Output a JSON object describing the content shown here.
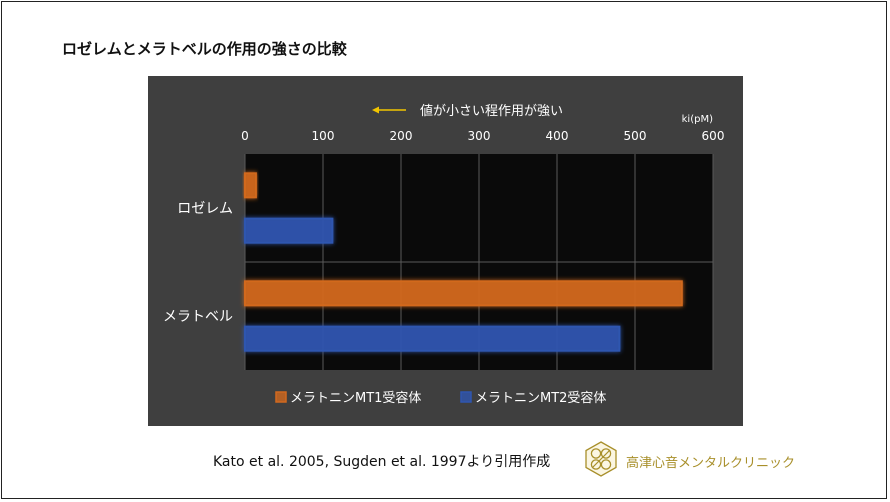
{
  "page": {
    "title": "ロゼレムとメラトベルの作用の強さの比較",
    "citation": "Kato et al. 2005, Sugden et al. 1997より引用作成",
    "clinic_name": "高津心音メンタルクリニック",
    "logo_icon": "clover-logo-icon"
  },
  "chart_data": {
    "type": "bar",
    "orientation": "horizontal",
    "categories": [
      "ロゼレム",
      "メラトベル"
    ],
    "series": [
      {
        "name": "メラトニンMT1受容体",
        "color": "#d2691e",
        "values": [
          14,
          560
        ]
      },
      {
        "name": "メラトニンMT2受容体",
        "color": "#2f56b0",
        "values": [
          112,
          480
        ]
      }
    ],
    "xlim": [
      0,
      600
    ],
    "xticks": [
      0,
      100,
      200,
      300,
      400,
      500,
      600
    ],
    "xlabel": "ki(pM)",
    "annotation": "値が小さい程作用が強い",
    "annotation_arrow": "left",
    "grid": true,
    "legend_position": "bottom",
    "colors": {
      "panel": "#3f3f3f",
      "plot": "#0a0a0a",
      "grid": "#5a5a5a",
      "text": "#ffffff",
      "arrow": "#f2c500"
    }
  }
}
